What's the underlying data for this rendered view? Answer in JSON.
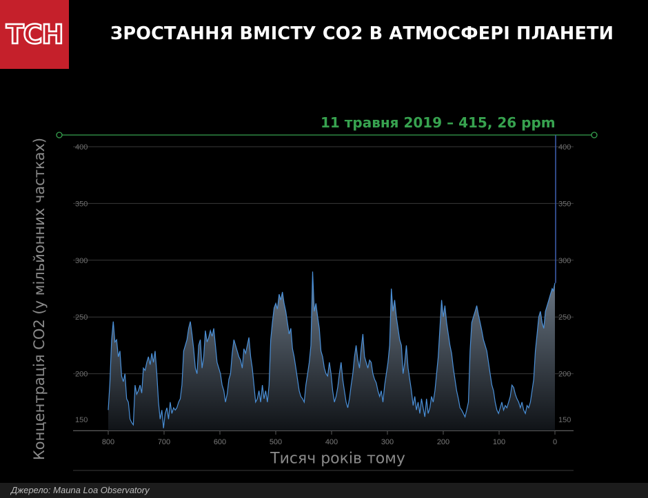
{
  "logo": {
    "text": "ТСН"
  },
  "title": "ЗРОСТАННЯ ВМІСТУ СО2 В АТМОСФЕРІ ПЛАНЕТИ",
  "source": "Джерело: Mauna Loa Observatory",
  "colors": {
    "logo_bg": "#c5202b",
    "line": "#4a90d9",
    "annotation": "#37a24f",
    "current_marker": "#3b5aa8"
  },
  "chart_data": {
    "type": "area",
    "title": "",
    "xlabel": "Тисяч років тому",
    "ylabel": "Концентрація СО2 (у мільйонних частках)",
    "xlim": [
      800,
      0
    ],
    "ylim": [
      150,
      400
    ],
    "x_ticks": [
      800,
      700,
      600,
      500,
      400,
      300,
      200,
      100,
      0
    ],
    "y_ticks": [
      150,
      200,
      250,
      300,
      350,
      400
    ],
    "grid": true,
    "annotation": {
      "text": "11 травня 2019 – 415, 26 ppm",
      "x": 0,
      "y": 415
    },
    "series": [
      {
        "values": [
          [
            800,
            168
          ],
          [
            797,
            192
          ],
          [
            794,
            230
          ],
          [
            791,
            246
          ],
          [
            788,
            228
          ],
          [
            785,
            230
          ],
          [
            782,
            215
          ],
          [
            779,
            220
          ],
          [
            776,
            198
          ],
          [
            773,
            193
          ],
          [
            770,
            200
          ],
          [
            767,
            178
          ],
          [
            764,
            175
          ],
          [
            761,
            160
          ],
          [
            758,
            157
          ],
          [
            755,
            155
          ],
          [
            752,
            190
          ],
          [
            749,
            182
          ],
          [
            746,
            185
          ],
          [
            743,
            190
          ],
          [
            740,
            183
          ],
          [
            737,
            205
          ],
          [
            734,
            203
          ],
          [
            731,
            210
          ],
          [
            728,
            215
          ],
          [
            725,
            208
          ],
          [
            722,
            218
          ],
          [
            719,
            210
          ],
          [
            716,
            220
          ],
          [
            713,
            200
          ],
          [
            710,
            175
          ],
          [
            707,
            160
          ],
          [
            704,
            168
          ],
          [
            701,
            152
          ],
          [
            698,
            165
          ],
          [
            695,
            170
          ],
          [
            692,
            160
          ],
          [
            689,
            175
          ],
          [
            686,
            165
          ],
          [
            683,
            170
          ],
          [
            680,
            168
          ],
          [
            677,
            170
          ],
          [
            674,
            175
          ],
          [
            671,
            178
          ],
          [
            668,
            190
          ],
          [
            665,
            220
          ],
          [
            662,
            225
          ],
          [
            659,
            230
          ],
          [
            656,
            240
          ],
          [
            653,
            246
          ],
          [
            650,
            235
          ],
          [
            647,
            222
          ],
          [
            644,
            205
          ],
          [
            641,
            200
          ],
          [
            638,
            225
          ],
          [
            635,
            230
          ],
          [
            632,
            205
          ],
          [
            629,
            215
          ],
          [
            626,
            238
          ],
          [
            623,
            228
          ],
          [
            620,
            232
          ],
          [
            617,
            238
          ],
          [
            614,
            233
          ],
          [
            611,
            240
          ],
          [
            608,
            225
          ],
          [
            605,
            210
          ],
          [
            602,
            205
          ],
          [
            599,
            200
          ],
          [
            596,
            190
          ],
          [
            593,
            185
          ],
          [
            590,
            175
          ],
          [
            587,
            182
          ],
          [
            584,
            195
          ],
          [
            581,
            200
          ],
          [
            578,
            218
          ],
          [
            575,
            230
          ],
          [
            572,
            225
          ],
          [
            569,
            220
          ],
          [
            566,
            215
          ],
          [
            563,
            212
          ],
          [
            560,
            205
          ],
          [
            557,
            222
          ],
          [
            554,
            218
          ],
          [
            551,
            225
          ],
          [
            548,
            232
          ],
          [
            545,
            215
          ],
          [
            542,
            205
          ],
          [
            539,
            190
          ],
          [
            536,
            175
          ],
          [
            533,
            178
          ],
          [
            530,
            185
          ],
          [
            527,
            175
          ],
          [
            524,
            190
          ],
          [
            521,
            178
          ],
          [
            518,
            185
          ],
          [
            515,
            175
          ],
          [
            512,
            190
          ],
          [
            509,
            230
          ],
          [
            506,
            245
          ],
          [
            503,
            258
          ],
          [
            500,
            262
          ],
          [
            497,
            257
          ],
          [
            494,
            270
          ],
          [
            491,
            265
          ],
          [
            488,
            272
          ],
          [
            485,
            262
          ],
          [
            482,
            255
          ],
          [
            479,
            245
          ],
          [
            476,
            235
          ],
          [
            473,
            240
          ],
          [
            470,
            222
          ],
          [
            467,
            215
          ],
          [
            464,
            205
          ],
          [
            461,
            195
          ],
          [
            458,
            185
          ],
          [
            455,
            180
          ],
          [
            452,
            178
          ],
          [
            449,
            175
          ],
          [
            446,
            190
          ],
          [
            443,
            200
          ],
          [
            440,
            210
          ],
          [
            437,
            225
          ],
          [
            434,
            290
          ],
          [
            431,
            255
          ],
          [
            428,
            262
          ],
          [
            425,
            250
          ],
          [
            422,
            240
          ],
          [
            419,
            220
          ],
          [
            416,
            215
          ],
          [
            413,
            205
          ],
          [
            410,
            200
          ],
          [
            407,
            198
          ],
          [
            404,
            210
          ],
          [
            401,
            200
          ],
          [
            398,
            185
          ],
          [
            395,
            175
          ],
          [
            392,
            180
          ],
          [
            389,
            188
          ],
          [
            386,
            200
          ],
          [
            383,
            210
          ],
          [
            380,
            195
          ],
          [
            377,
            185
          ],
          [
            374,
            175
          ],
          [
            371,
            170
          ],
          [
            368,
            178
          ],
          [
            365,
            190
          ],
          [
            362,
            200
          ],
          [
            359,
            215
          ],
          [
            356,
            225
          ],
          [
            353,
            212
          ],
          [
            350,
            205
          ],
          [
            347,
            222
          ],
          [
            344,
            235
          ],
          [
            341,
            215
          ],
          [
            338,
            210
          ],
          [
            335,
            205
          ],
          [
            332,
            212
          ],
          [
            329,
            210
          ],
          [
            326,
            200
          ],
          [
            323,
            195
          ],
          [
            320,
            192
          ],
          [
            317,
            185
          ],
          [
            314,
            180
          ],
          [
            311,
            185
          ],
          [
            308,
            175
          ],
          [
            305,
            190
          ],
          [
            302,
            200
          ],
          [
            299,
            210
          ],
          [
            296,
            225
          ],
          [
            293,
            275
          ],
          [
            290,
            255
          ],
          [
            287,
            265
          ],
          [
            284,
            250
          ],
          [
            281,
            240
          ],
          [
            278,
            230
          ],
          [
            275,
            225
          ],
          [
            272,
            200
          ],
          [
            269,
            210
          ],
          [
            266,
            225
          ],
          [
            263,
            205
          ],
          [
            260,
            195
          ],
          [
            257,
            185
          ],
          [
            254,
            172
          ],
          [
            251,
            180
          ],
          [
            248,
            168
          ],
          [
            245,
            175
          ],
          [
            242,
            165
          ],
          [
            239,
            178
          ],
          [
            236,
            170
          ],
          [
            233,
            162
          ],
          [
            230,
            178
          ],
          [
            227,
            165
          ],
          [
            224,
            170
          ],
          [
            221,
            180
          ],
          [
            218,
            175
          ],
          [
            215,
            185
          ],
          [
            212,
            200
          ],
          [
            209,
            215
          ],
          [
            206,
            240
          ],
          [
            203,
            265
          ],
          [
            200,
            250
          ],
          [
            197,
            260
          ],
          [
            194,
            245
          ],
          [
            191,
            235
          ],
          [
            188,
            225
          ],
          [
            185,
            218
          ],
          [
            182,
            205
          ],
          [
            179,
            195
          ],
          [
            176,
            185
          ],
          [
            173,
            178
          ],
          [
            170,
            170
          ],
          [
            167,
            168
          ],
          [
            164,
            165
          ],
          [
            161,
            162
          ],
          [
            158,
            168
          ],
          [
            155,
            175
          ],
          [
            152,
            220
          ],
          [
            149,
            245
          ],
          [
            146,
            250
          ],
          [
            143,
            255
          ],
          [
            140,
            260
          ],
          [
            137,
            252
          ],
          [
            134,
            245
          ],
          [
            131,
            238
          ],
          [
            128,
            230
          ],
          [
            125,
            225
          ],
          [
            122,
            220
          ],
          [
            119,
            210
          ],
          [
            116,
            200
          ],
          [
            113,
            190
          ],
          [
            110,
            185
          ],
          [
            107,
            175
          ],
          [
            104,
            168
          ],
          [
            101,
            165
          ],
          [
            98,
            170
          ],
          [
            95,
            175
          ],
          [
            92,
            168
          ],
          [
            89,
            172
          ],
          [
            86,
            170
          ],
          [
            83,
            175
          ],
          [
            80,
            180
          ],
          [
            77,
            190
          ],
          [
            74,
            188
          ],
          [
            71,
            182
          ],
          [
            68,
            178
          ],
          [
            65,
            175
          ],
          [
            62,
            170
          ],
          [
            59,
            175
          ],
          [
            56,
            168
          ],
          [
            53,
            165
          ],
          [
            50,
            172
          ],
          [
            47,
            170
          ],
          [
            44,
            175
          ],
          [
            41,
            185
          ],
          [
            38,
            195
          ],
          [
            35,
            220
          ],
          [
            32,
            235
          ],
          [
            29,
            250
          ],
          [
            26,
            255
          ],
          [
            23,
            245
          ],
          [
            20,
            240
          ],
          [
            17,
            255
          ],
          [
            14,
            260
          ],
          [
            11,
            265
          ],
          [
            8,
            270
          ],
          [
            5,
            275
          ],
          [
            3,
            273
          ],
          [
            0,
            280
          ]
        ]
      }
    ]
  }
}
